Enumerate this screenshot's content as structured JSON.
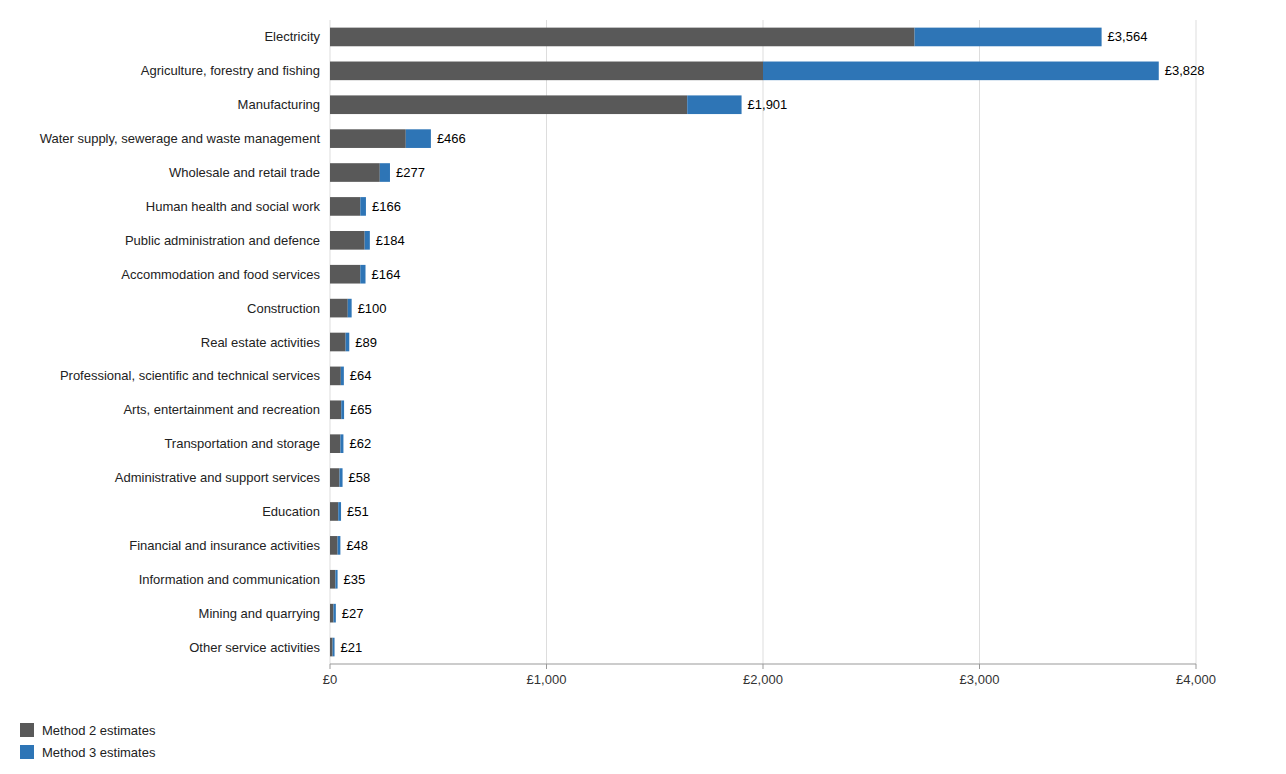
{
  "chart_data": {
    "type": "bar",
    "orientation": "horizontal",
    "stacked": true,
    "categories": [
      "Electricity",
      "Agriculture, forestry and fishing",
      "Manufacturing",
      "Water supply, sewerage and waste management",
      "Wholesale and retail trade",
      "Human health and social work",
      "Public administration and defence",
      "Accommodation and food services",
      "Construction",
      "Real estate activities",
      "Professional, scientific and technical services",
      "Arts, entertainment and recreation",
      "Transportation and storage",
      "Administrative and support services",
      "Education",
      "Financial and insurance activities",
      "Information and communication",
      "Mining and quarrying",
      "Other service activities"
    ],
    "series": [
      {
        "name": "Method 2 estimates",
        "color": "#595959",
        "values": [
          2700,
          2000,
          1650,
          350,
          230,
          140,
          160,
          140,
          82,
          72,
          50,
          52,
          48,
          44,
          38,
          35,
          25,
          16,
          12
        ]
      },
      {
        "name": "Method 3 estimates",
        "color": "#2E75B6",
        "values": [
          864,
          1828,
          251,
          116,
          47,
          26,
          24,
          24,
          18,
          17,
          14,
          13,
          14,
          14,
          13,
          13,
          10,
          11,
          9
        ]
      }
    ],
    "totals": [
      3564,
      3828,
      1901,
      466,
      277,
      166,
      184,
      164,
      100,
      89,
      64,
      65,
      62,
      58,
      51,
      48,
      35,
      27,
      21
    ],
    "total_labels": [
      "£3,564",
      "£3,828",
      "£1,901",
      "£466",
      "£277",
      "£166",
      "£184",
      "£164",
      "£100",
      "£89",
      "£64",
      "£65",
      "£62",
      "£58",
      "£51",
      "£48",
      "£35",
      "£27",
      "£21"
    ],
    "xlim": [
      0,
      4000
    ],
    "xticks": [
      {
        "value": 0,
        "label": "£0"
      },
      {
        "value": 1000,
        "label": "£1,000"
      },
      {
        "value": 2000,
        "label": "£2,000"
      },
      {
        "value": 3000,
        "label": "£3,000"
      },
      {
        "value": 4000,
        "label": "£4,000"
      }
    ],
    "grid": true,
    "legend": "lower left"
  }
}
